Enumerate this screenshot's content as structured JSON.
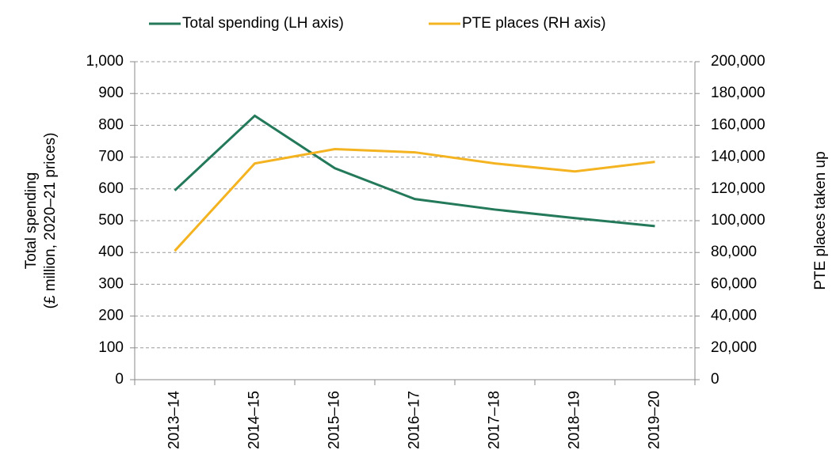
{
  "chart_data": {
    "type": "line",
    "categories": [
      "2013–14",
      "2014–15",
      "2015–16",
      "2016–17",
      "2017–18",
      "2018–19",
      "2019–20"
    ],
    "series": [
      {
        "name": "Total spending (LH axis)",
        "color": "#23795a",
        "values": [
          595,
          830,
          665,
          568,
          535,
          508,
          483
        ]
      },
      {
        "name": "PTE places (RH axis)",
        "color": "#f4b320",
        "axis": "y2",
        "values": [
          81000,
          136000,
          145000,
          143000,
          136000,
          131000,
          137000
        ]
      }
    ],
    "ylabel": [
      "Total spending",
      "(£ million, 2020–21 prices)"
    ],
    "y2label": "PTE places taken up",
    "ylim": [
      0,
      1000
    ],
    "yticks": [
      0,
      100,
      200,
      300,
      400,
      500,
      600,
      700,
      800,
      900,
      {
        "value": 1000,
        "label": "1,000"
      }
    ],
    "y2lim": [
      0,
      200000
    ],
    "y2ticks": [
      0,
      {
        "value": 20000,
        "label": "20,000"
      },
      {
        "value": 40000,
        "label": "40,000"
      },
      {
        "value": 60000,
        "label": "60,000"
      },
      {
        "value": 80000,
        "label": "80,000"
      },
      {
        "value": 100000,
        "label": "100,000"
      },
      {
        "value": 120000,
        "label": "120,000"
      },
      {
        "value": 140000,
        "label": "140,000"
      },
      {
        "value": 160000,
        "label": "160,000"
      },
      {
        "value": 180000,
        "label": "180,000"
      },
      {
        "value": 200000,
        "label": "200,000"
      }
    ],
    "grid": true,
    "legend": "top"
  }
}
